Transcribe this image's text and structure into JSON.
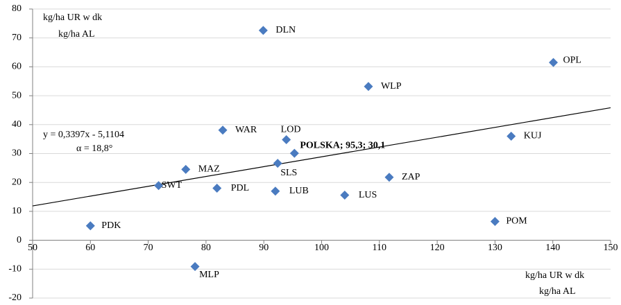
{
  "chart_data": {
    "type": "scatter",
    "x_label": [
      "kg/ha UR w dk",
      "kg/ha AL"
    ],
    "y_label": [
      "kg/ha UR w dk",
      "kg/ha AL"
    ],
    "labels": [
      "DLN",
      "OPL",
      "WLP",
      "WAR",
      "LOD",
      "POLSKA; 95,3; 30,1",
      "KUJ",
      "SLS",
      "MAZ",
      "ZAP",
      "SWT",
      "PDL",
      "LUB",
      "LUS",
      "PDK",
      "POM",
      "MLP"
    ],
    "x": [
      89.9,
      140.1,
      108.1,
      82.9,
      93.9,
      95.3,
      132.8,
      92.4,
      76.5,
      111.7,
      71.8,
      81.9,
      92.0,
      104.0,
      60.0,
      130.0,
      78.1
    ],
    "y": [
      72.6,
      61.5,
      53.2,
      38.1,
      34.8,
      30.1,
      36.0,
      26.6,
      24.5,
      21.8,
      18.9,
      18.0,
      17.0,
      15.6,
      5.0,
      6.5,
      -9.1
    ],
    "color": "#4a7bc0",
    "trendline": {
      "slope": 0.3397,
      "intercept": -5.1104
    },
    "annotations": [
      "y = 0,3397x  - 5,1104",
      "α = 18,8°"
    ],
    "xlim": [
      50,
      150
    ],
    "xticks": [
      50,
      60,
      70,
      80,
      90,
      100,
      110,
      120,
      130,
      140,
      150
    ],
    "ylim": [
      -20,
      80
    ],
    "yticks": [
      -20,
      -10,
      0,
      10,
      20,
      30,
      40,
      50,
      60,
      70,
      80
    ],
    "grid": true
  }
}
